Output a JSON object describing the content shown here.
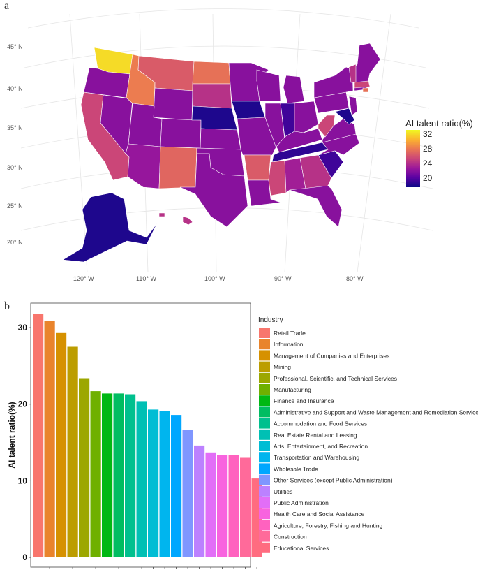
{
  "panels": {
    "a_letter": "a",
    "b_letter": "b"
  },
  "chart_data": [
    {
      "type": "map",
      "title": "",
      "legend_title": "AI talent ratio(%)",
      "legend_ticks": [
        "32",
        "28",
        "24",
        "20"
      ],
      "legend_range": [
        19,
        33
      ],
      "colormap": [
        "#0d0887",
        "#5b02a3",
        "#9a179b",
        "#cb4678",
        "#eb7852",
        "#fbb32f",
        "#f0f921"
      ],
      "lat_labels": [
        "45° N",
        "40° N",
        "35° N",
        "30° N",
        "25° N",
        "20° N"
      ],
      "lon_labels": [
        "120° W",
        "110° W",
        "100° W",
        "90° W",
        "80° W"
      ],
      "regions": [
        {
          "name": "Washington",
          "value": 32
        },
        {
          "name": "Oregon",
          "value": 23
        },
        {
          "name": "California",
          "value": 26
        },
        {
          "name": "Nevada",
          "value": 23
        },
        {
          "name": "Idaho",
          "value": 28.5
        },
        {
          "name": "Montana",
          "value": 27
        },
        {
          "name": "Wyoming",
          "value": 23
        },
        {
          "name": "Utah",
          "value": 23
        },
        {
          "name": "Arizona",
          "value": 23.5
        },
        {
          "name": "Colorado",
          "value": 23
        },
        {
          "name": "New Mexico",
          "value": 27.5
        },
        {
          "name": "North Dakota",
          "value": 28
        },
        {
          "name": "South Dakota",
          "value": 25
        },
        {
          "name": "Nebraska",
          "value": 19.5
        },
        {
          "name": "Kansas",
          "value": 23
        },
        {
          "name": "Oklahoma",
          "value": 23
        },
        {
          "name": "Texas",
          "value": 23
        },
        {
          "name": "Minnesota",
          "value": 23
        },
        {
          "name": "Iowa",
          "value": 19.5
        },
        {
          "name": "Missouri",
          "value": 23
        },
        {
          "name": "Arkansas",
          "value": 27
        },
        {
          "name": "Louisiana",
          "value": 23
        },
        {
          "name": "Wisconsin",
          "value": 23
        },
        {
          "name": "Illinois",
          "value": 23
        },
        {
          "name": "Michigan",
          "value": 23
        },
        {
          "name": "Indiana",
          "value": 20.5
        },
        {
          "name": "Ohio",
          "value": 23
        },
        {
          "name": "Kentucky",
          "value": 23
        },
        {
          "name": "Tennessee",
          "value": 20
        },
        {
          "name": "Mississippi",
          "value": 26
        },
        {
          "name": "Alabama",
          "value": 24
        },
        {
          "name": "Georgia",
          "value": 25
        },
        {
          "name": "Florida",
          "value": 23
        },
        {
          "name": "South Carolina",
          "value": 20.5
        },
        {
          "name": "North Carolina",
          "value": 23
        },
        {
          "name": "Virginia",
          "value": 23
        },
        {
          "name": "West Virginia",
          "value": 26
        },
        {
          "name": "Pennsylvania",
          "value": 23
        },
        {
          "name": "New York",
          "value": 23
        },
        {
          "name": "New England",
          "value": 23
        },
        {
          "name": "Vermont",
          "value": 25
        },
        {
          "name": "Massachusetts",
          "value": 26
        },
        {
          "name": "Rhode Island",
          "value": 28
        },
        {
          "name": "New Jersey",
          "value": 23
        },
        {
          "name": "Maryland",
          "value": 19.5
        },
        {
          "name": "Alaska",
          "value": 19.5
        },
        {
          "name": "Hawaii",
          "value": 25
        }
      ]
    },
    {
      "type": "bar",
      "title": "",
      "xlabel": "",
      "ylabel": "AI talent ratio(%)",
      "ylim": [
        0,
        32.2
      ],
      "yticks": [
        0,
        10,
        20,
        30
      ],
      "legend_title": "Industry",
      "legend_placement": "right",
      "categories": [
        "Retail Trade",
        "Information",
        "Management of Companies and Enterprises",
        "Mining",
        "Professional, Scientific, and Technical Services",
        "Manufacturing",
        "Finance and Insurance",
        "Administrative and Support and Waste Management and Remediation Services",
        "Accommodation and Food Services",
        "Real Estate Rental and Leasing",
        "Arts, Entertainment, and Recreation",
        "Transportation and Warehousing",
        "Wholesale Trade",
        "Other Services (except Public Administration)",
        "Utilities",
        "Public Administration",
        "Health Care and Social Assistance",
        "Agriculture, Forestry, Fishing and Hunting",
        "Construction",
        "Educational Services"
      ],
      "values": [
        31.8,
        30.9,
        29.3,
        27.5,
        23.4,
        21.7,
        21.4,
        21.4,
        21.3,
        20.4,
        19.3,
        19.1,
        18.6,
        16.6,
        14.6,
        13.7,
        13.4,
        13.4,
        13.0,
        10.3
      ],
      "colors": [
        "#F8766D",
        "#E9842C",
        "#D69100",
        "#BC9D00",
        "#9CA700",
        "#6FB000",
        "#00B813",
        "#00BD61",
        "#00C08E",
        "#00C0B4",
        "#00BDD4",
        "#00B5EE",
        "#00A7FF",
        "#7F96FF",
        "#BC81FF",
        "#E26EF7",
        "#F863DF",
        "#FF62BF",
        "#FF6A9A",
        "#FF6C80"
      ]
    }
  ]
}
